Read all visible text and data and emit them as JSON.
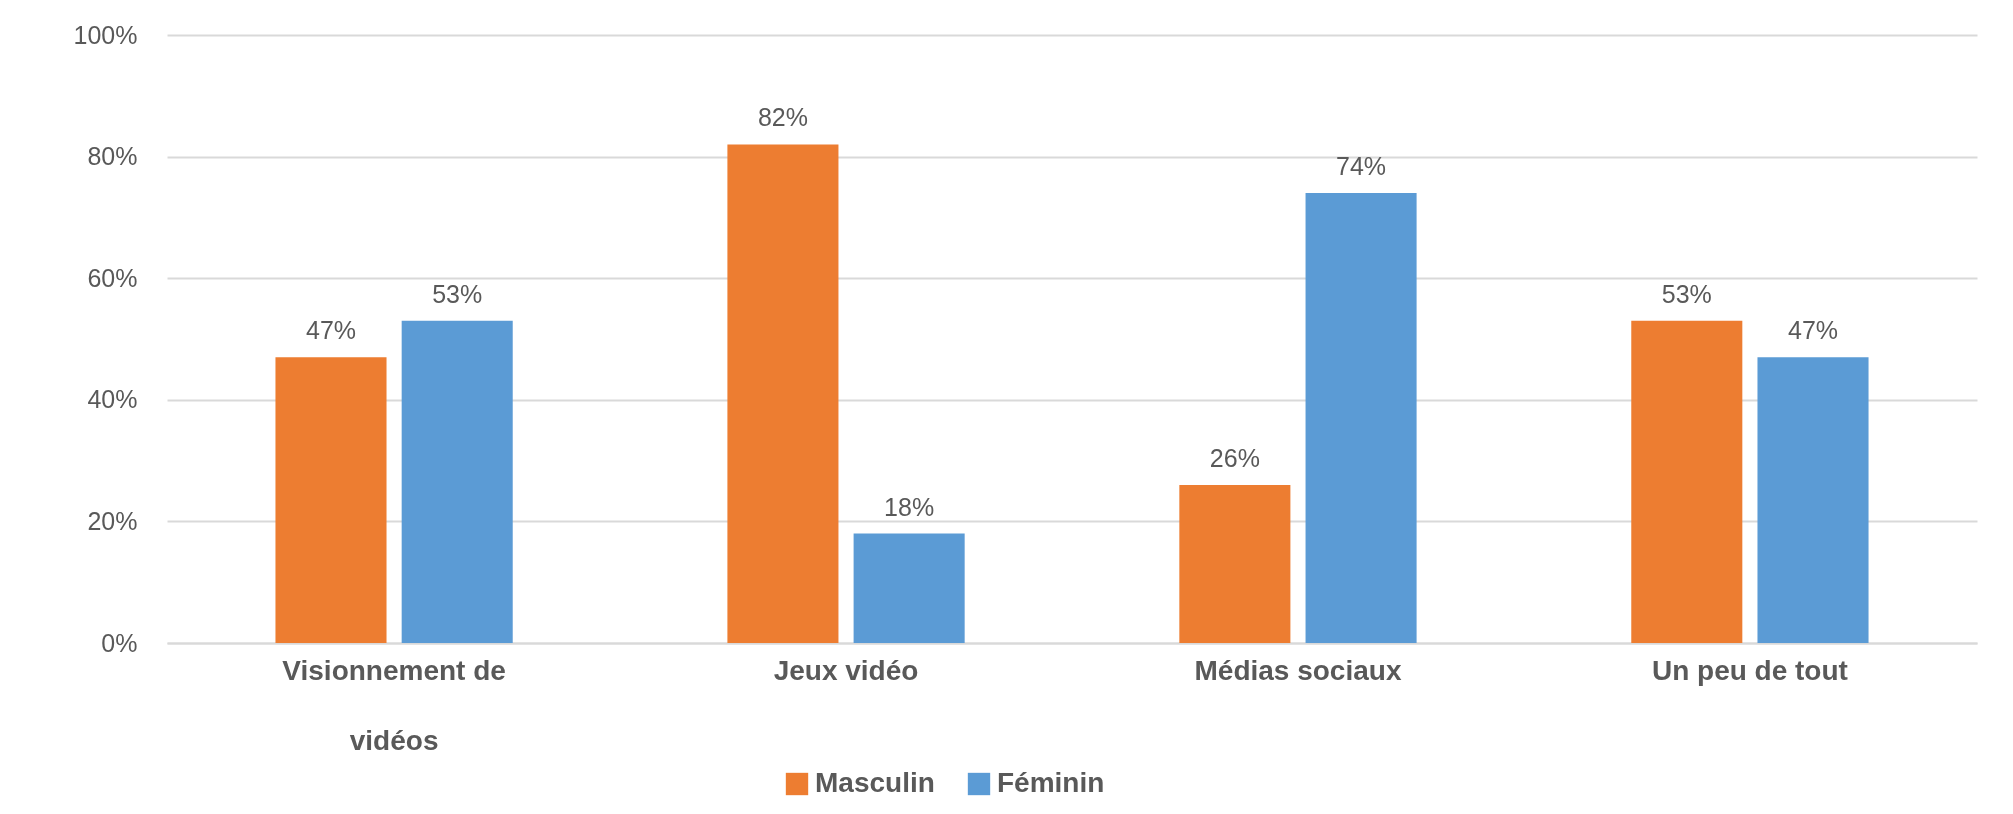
{
  "chart_data": {
    "type": "bar",
    "categories": [
      "Visionnement de vidéos",
      "Jeux vidéo",
      "Médias sociaux",
      "Un peu de tout"
    ],
    "series": [
      {
        "name": "Masculin",
        "color": "#ed7d31",
        "values": [
          47,
          82,
          26,
          53
        ],
        "value_labels": [
          "47%",
          "82%",
          "26%",
          "53%"
        ]
      },
      {
        "name": "Féminin",
        "color": "#5b9bd5",
        "values": [
          53,
          18,
          74,
          47
        ],
        "value_labels": [
          "53%",
          "18%",
          "74%",
          "47%"
        ]
      }
    ],
    "ylim": [
      0,
      100
    ],
    "yticks": [
      {
        "value": 0,
        "label": "0%"
      },
      {
        "value": 20,
        "label": "20%"
      },
      {
        "value": 40,
        "label": "40%"
      },
      {
        "value": 60,
        "label": "60%"
      },
      {
        "value": 80,
        "label": "80%"
      },
      {
        "value": 100,
        "label": "100%"
      }
    ],
    "grid": "y",
    "legend": "bottom"
  }
}
